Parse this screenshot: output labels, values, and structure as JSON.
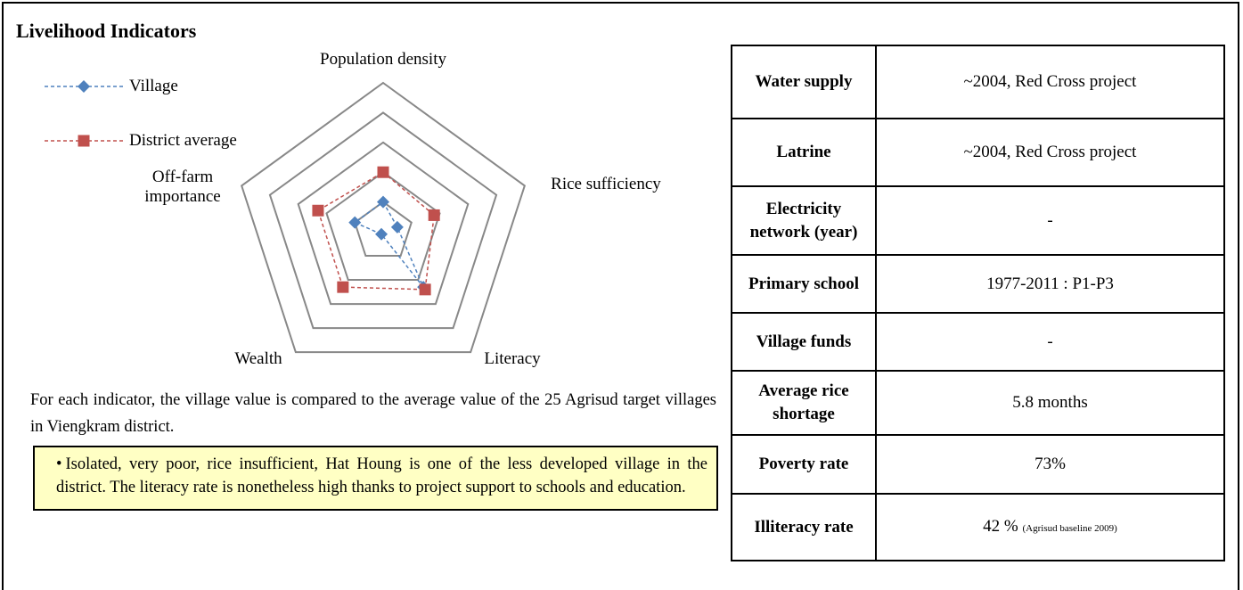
{
  "title": "Livelihood Indicators",
  "chart_data": {
    "type": "radar",
    "categories": [
      "Population density",
      "Rice sufficiency",
      "Literacy",
      "Wealth",
      "Off-farm importance"
    ],
    "series": [
      {
        "name": "Village",
        "color": "#4f81bd",
        "marker": "diamond",
        "values": [
          1,
          0.5,
          2.3,
          0.1,
          1
        ]
      },
      {
        "name": "District average",
        "color": "#c0504d",
        "marker": "square",
        "values": [
          2,
          1.8,
          2.4,
          2.3,
          2.3
        ]
      }
    ],
    "ylim": [
      0,
      5
    ],
    "yticks": [
      1,
      2,
      3,
      4,
      5
    ],
    "grid": true,
    "legend": "top-left"
  },
  "caption": "For each indicator, the village value is compared to the average value of the 25 Agrisud target villages in Viengkram district.",
  "box": "Isolated, very poor, rice insufficient, Hat Houng is one of the less developed village in the district. The literacy rate is nonetheless high thanks to project support to schools and education.",
  "table": {
    "rows": [
      [
        "Water supply",
        "~2004, Red Cross project"
      ],
      [
        "Latrine",
        "~2004, Red Cross project"
      ],
      [
        "Electricity network (year)",
        "-"
      ],
      [
        "Primary school",
        "1977-2011 : P1-P3"
      ],
      [
        "Village funds",
        "-"
      ],
      [
        "Average rice shortage",
        "5.8 months"
      ],
      [
        "Poverty rate",
        "73%"
      ],
      [
        "Illiteracy rate",
        "42 %",
        "(Agrisud baseline 2009)"
      ]
    ]
  }
}
